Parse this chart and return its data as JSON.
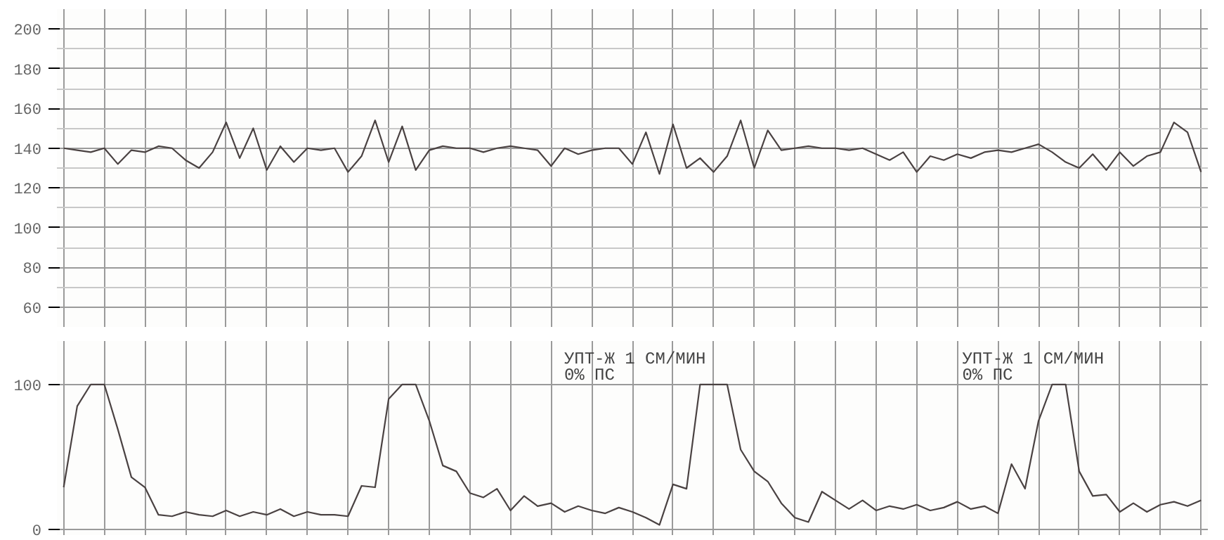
{
  "chart_data": [
    {
      "type": "line",
      "categories": [
        null,
        null,
        null,
        null,
        null,
        null,
        null,
        null,
        null,
        null,
        null,
        null,
        null,
        null,
        null,
        null,
        null,
        null,
        null,
        null,
        null,
        null,
        null,
        null,
        null,
        null,
        null,
        null,
        null,
        null,
        null,
        null,
        null,
        null,
        null,
        null,
        null,
        null,
        null,
        null,
        null,
        null,
        null,
        null,
        null,
        null,
        null,
        null,
        null,
        null,
        null,
        null,
        null,
        null,
        null,
        null,
        null,
        null,
        null,
        null,
        null,
        null,
        null,
        null,
        null,
        null,
        null,
        null,
        null,
        null,
        null,
        null,
        null,
        null,
        null,
        null,
        null,
        null,
        null,
        null,
        null,
        null,
        null,
        null,
        null
      ],
      "series": [
        {
          "color": "#4a4242",
          "values": [
            140,
            139,
            138,
            140,
            132,
            139,
            138,
            141,
            140,
            134,
            130,
            138,
            153,
            135,
            150,
            129,
            141,
            133,
            140,
            139,
            140,
            128,
            136,
            154,
            133,
            151,
            129,
            139,
            141,
            140,
            140,
            138,
            140,
            141,
            140,
            139,
            131,
            140,
            137,
            139,
            140,
            140,
            132,
            148,
            127,
            152,
            130,
            135,
            128,
            136,
            154,
            130,
            149,
            139,
            140,
            141,
            140,
            140,
            139,
            140,
            137,
            134,
            138,
            128,
            136,
            134,
            137,
            135,
            138,
            139,
            138,
            140,
            142,
            138,
            133,
            130,
            137,
            129,
            138,
            131,
            136,
            138,
            153,
            148,
            128
          ]
        }
      ],
      "ylim": [
        50,
        210
      ],
      "yticks": [
        60,
        80,
        100,
        120,
        140,
        160,
        180,
        200
      ],
      "grid": true,
      "tick_labels": "y"
    },
    {
      "type": "line",
      "categories": [
        null,
        null,
        null,
        null,
        null,
        null,
        null,
        null,
        null,
        null,
        null,
        null,
        null,
        null,
        null,
        null,
        null,
        null,
        null,
        null,
        null,
        null,
        null,
        null,
        null,
        null,
        null,
        null,
        null,
        null,
        null,
        null,
        null,
        null,
        null,
        null,
        null,
        null,
        null,
        null,
        null,
        null,
        null,
        null,
        null,
        null,
        null,
        null,
        null,
        null,
        null,
        null,
        null,
        null,
        null,
        null,
        null,
        null,
        null,
        null,
        null,
        null,
        null,
        null,
        null,
        null,
        null,
        null,
        null,
        null,
        null,
        null,
        null,
        null,
        null,
        null,
        null,
        null,
        null,
        null,
        null,
        null,
        null,
        null,
        null
      ],
      "series": [
        {
          "color": "#4a4242",
          "values": [
            29,
            85,
            100,
            100,
            69,
            36,
            29,
            10,
            9,
            12,
            10,
            9,
            13,
            9,
            12,
            10,
            14,
            9,
            12,
            10,
            10,
            9,
            30,
            29,
            90,
            100,
            100,
            75,
            44,
            40,
            25,
            22,
            28,
            13,
            23,
            16,
            18,
            12,
            16,
            13,
            11,
            15,
            12,
            8,
            3,
            31,
            28,
            100,
            100,
            100,
            55,
            40,
            33,
            18,
            8,
            5,
            26,
            20,
            14,
            20,
            13,
            16,
            14,
            17,
            13,
            15,
            19,
            14,
            16,
            11,
            45,
            28,
            75,
            100,
            100,
            40,
            23,
            24,
            12,
            18,
            12,
            17,
            19,
            16,
            20
          ]
        }
      ],
      "ylim": [
        -4,
        130
      ],
      "yticks": [
        0,
        100
      ],
      "grid": true,
      "tick_labels": "y",
      "annotations": [
        "УПТ-Ж  1 СМ/МИН",
        "0% ПС",
        "УПТ-Ж  1 СМ/МИН",
        "0% ПС"
      ]
    }
  ]
}
